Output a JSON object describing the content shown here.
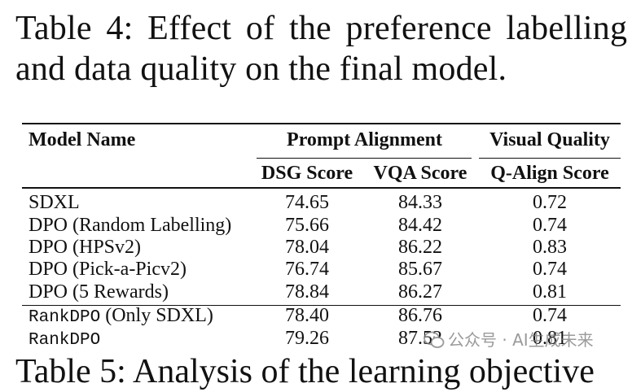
{
  "caption": {
    "line1": "Table 4:  Effect of the preference labelling",
    "line2": "and data quality on the final model."
  },
  "table": {
    "headers": {
      "model_name": "Model Name",
      "prompt_alignment": "Prompt Alignment",
      "visual_quality": "Visual Quality",
      "dsg_score": "DSG Score",
      "vqa_score": "VQA Score",
      "qalign_score": "Q-Align Score"
    },
    "rows": [
      {
        "model": "SDXL",
        "model_suffix": "",
        "dsg": "74.65",
        "vqa": "84.33",
        "qalign": "0.72"
      },
      {
        "model": "DPO (Random Labelling)",
        "model_suffix": "",
        "dsg": "75.66",
        "vqa": "84.42",
        "qalign": "0.74"
      },
      {
        "model": "DPO (HPSv2)",
        "model_suffix": "",
        "dsg": "78.04",
        "vqa": "86.22",
        "qalign": "0.83"
      },
      {
        "model": "DPO (Pick-a-Picv2)",
        "model_suffix": "",
        "dsg": "76.74",
        "vqa": "85.67",
        "qalign": "0.74"
      },
      {
        "model": "DPO (5 Rewards)",
        "model_suffix": "",
        "dsg": "78.84",
        "vqa": "86.27",
        "qalign": "0.81"
      },
      {
        "model": "RankDPO",
        "model_suffix": " (Only SDXL)",
        "dsg": "78.40",
        "vqa": "86.76",
        "qalign": "0.74"
      },
      {
        "model": "RankDPO",
        "model_suffix": "",
        "dsg": "79.26",
        "vqa": "87.52",
        "qalign": "0.81"
      }
    ]
  },
  "watermark": {
    "text": "公众号 · AI生成未来"
  },
  "next_caption": {
    "text": "Table 5: Analysis of the learning objective"
  }
}
